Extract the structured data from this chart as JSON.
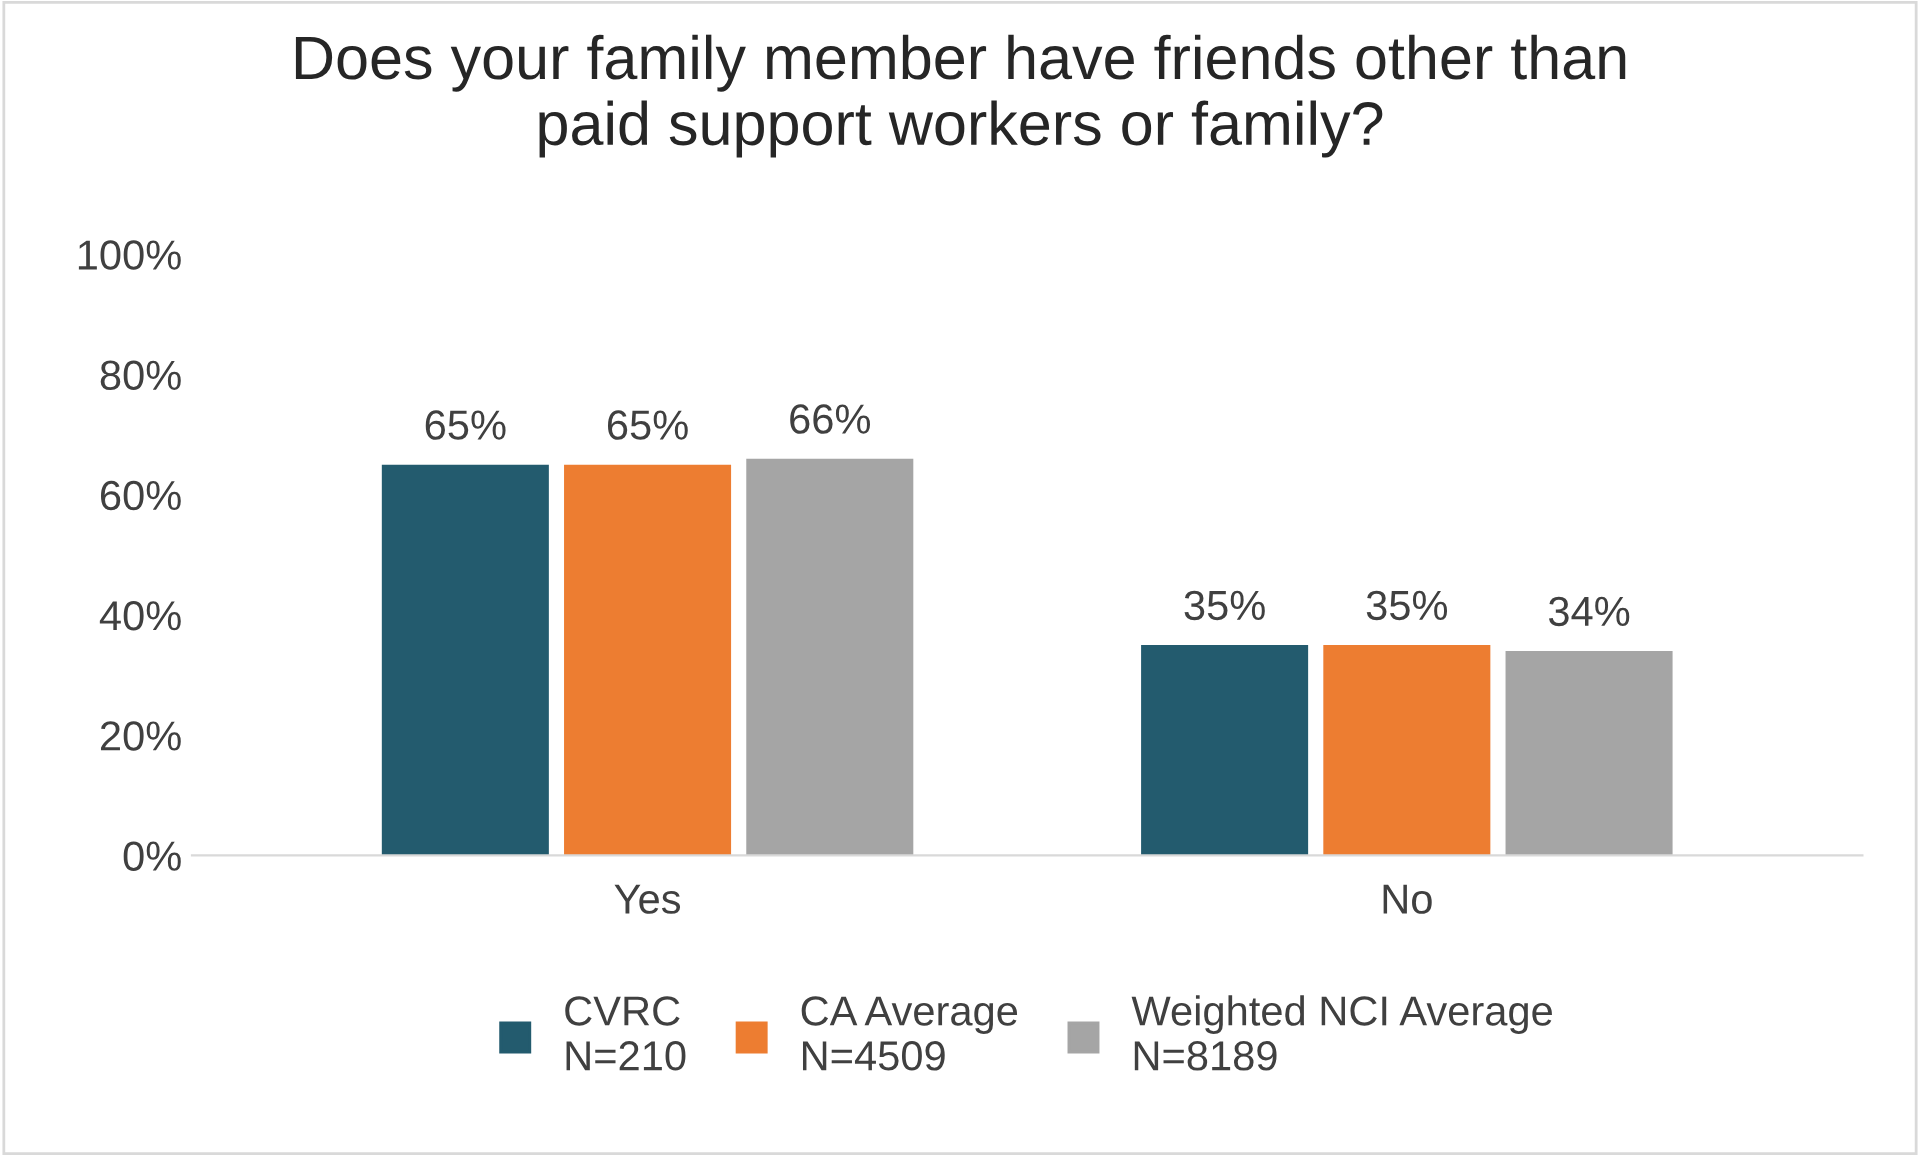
{
  "chart_data": {
    "type": "bar",
    "title": "Does your family member have friends other than\npaid support workers or family?",
    "categories": [
      "Yes",
      "No"
    ],
    "series": [
      {
        "name": "CVRC\nN=210",
        "color": "#235b6e",
        "values": [
          65,
          35
        ],
        "value_labels": [
          "65%",
          "35%"
        ]
      },
      {
        "name": "CA Average\nN=4509",
        "color": "#ed7d31",
        "values": [
          65,
          35
        ],
        "value_labels": [
          "65%",
          "35%"
        ]
      },
      {
        "name": "Weighted NCI Average\nN=8189",
        "color": "#a5a5a5",
        "values": [
          66,
          34
        ],
        "value_labels": [
          "66%",
          "34%"
        ]
      }
    ],
    "ylim": [
      0,
      100
    ],
    "yticks": [
      {
        "value": 0,
        "label": "0%"
      },
      {
        "value": 20,
        "label": "20%"
      },
      {
        "value": 40,
        "label": "40%"
      },
      {
        "value": 60,
        "label": "60%"
      },
      {
        "value": 80,
        "label": "80%"
      },
      {
        "value": 100,
        "label": "100%"
      }
    ],
    "grid": false,
    "legend": "bottom"
  }
}
